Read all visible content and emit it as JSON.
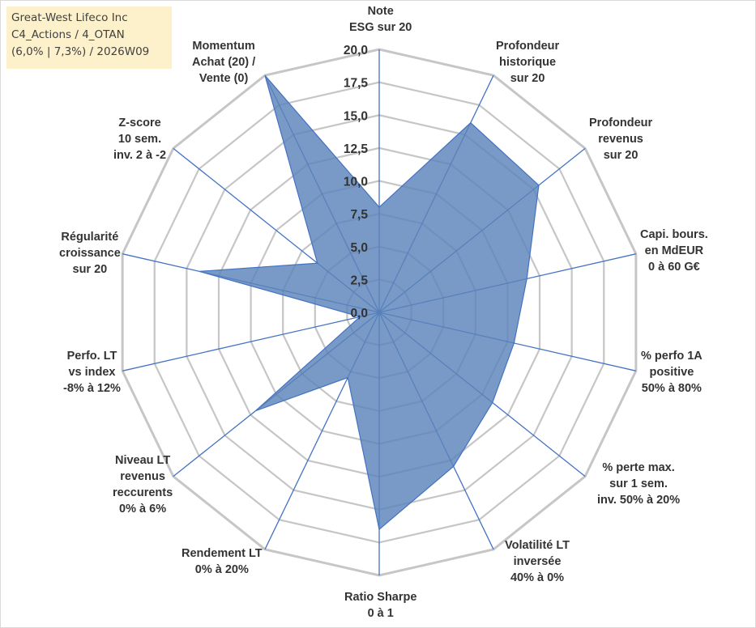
{
  "info": {
    "line1": "Great-West Lifeco Inc",
    "line2": "C4_Actions / 4_OTAN",
    "line3": "(6,0% | 7,3%) / 2026W09"
  },
  "chart_data": {
    "type": "radar",
    "rlim": [
      0,
      20
    ],
    "ticks": [
      "0,0",
      "2,5",
      "5,0",
      "7,5",
      "10,0",
      "12,5",
      "15,0",
      "17,5",
      "20,0"
    ],
    "tick_values": [
      0,
      2.5,
      5,
      7.5,
      10,
      12.5,
      15,
      17.5,
      20
    ],
    "grid": true,
    "fill_color": "#5b84b9",
    "line_color": "#4472c4",
    "grid_color": "#c6c6c6",
    "axes": [
      {
        "label": [
          "Note",
          "ESG sur 20"
        ]
      },
      {
        "label": [
          "Profondeur",
          "historique",
          "sur 20"
        ]
      },
      {
        "label": [
          "Profondeur",
          "revenus",
          "sur 20"
        ]
      },
      {
        "label": [
          "Capi. bours.",
          "en MdEUR",
          "0 à 60 G€"
        ]
      },
      {
        "label": [
          "% perfo 1A",
          "positive",
          "50% à 80%"
        ]
      },
      {
        "label": [
          "% perte max.",
          "sur 1 sem.",
          "inv. 50% à 20%"
        ]
      },
      {
        "label": [
          "Volatilité LT",
          "inversée",
          "40% à 0%"
        ]
      },
      {
        "label": [
          "Ratio Sharpe",
          "0 à 1"
        ]
      },
      {
        "label": [
          "Rendement LT",
          "0% à 20%"
        ]
      },
      {
        "label": [
          "Niveau LT",
          "revenus",
          "reccurents",
          "0% à 6%"
        ]
      },
      {
        "label": [
          "Perfo. LT",
          "vs index",
          "-8% à 12%"
        ]
      },
      {
        "label": [
          "Régularité",
          "croissance",
          "sur 20"
        ]
      },
      {
        "label": [
          "Z-score",
          "10 sem.",
          "inv. 2 à -2"
        ]
      },
      {
        "label": [
          "Momentum",
          "Achat (20) /",
          "Vente (0)"
        ]
      }
    ],
    "series": [
      {
        "values": [
          8.0,
          16.0,
          15.5,
          11.5,
          10.5,
          11.0,
          13.0,
          16.5,
          5.5,
          12.0,
          1.5,
          14.0,
          6.0,
          20.0
        ]
      }
    ]
  }
}
